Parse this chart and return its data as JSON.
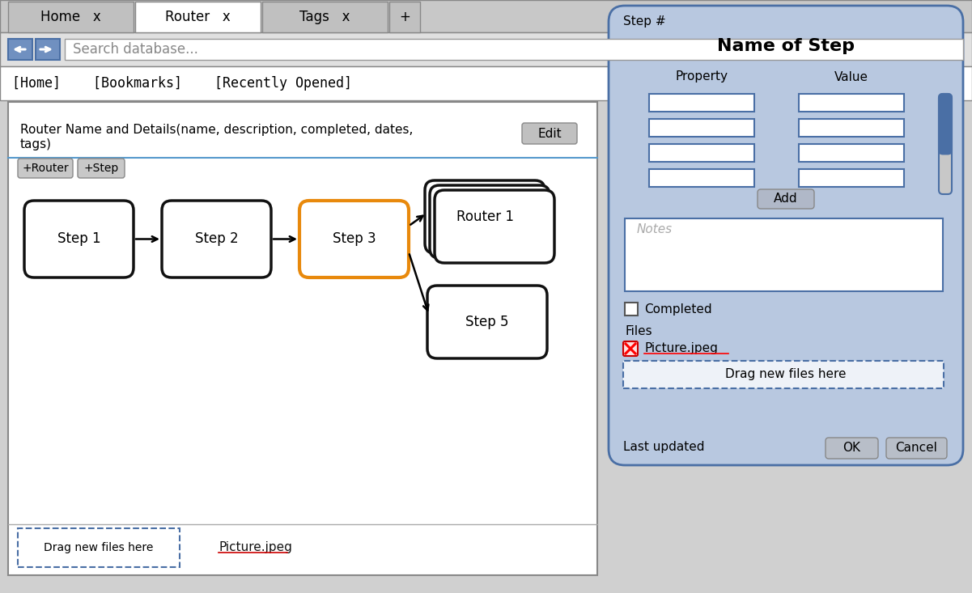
{
  "bg_color": "#d0d0d0",
  "tab_bar_color": "#c8c8c8",
  "tab_active_color": "#ffffff",
  "tab_inactive_color": "#c0c0c0",
  "active_tab": 1,
  "search_text": "Search database...",
  "nav_links": "[Home]    [Bookmarks]    [Recently Opened]",
  "main_panel_bg": "#ffffff",
  "main_panel_border": "#888888",
  "edit_btn_text": "Edit",
  "plus_router_text": "+Router",
  "plus_step_text": "+Step",
  "step1_text": "Step 1",
  "step2_text": "Step 2",
  "step3_text": "Step 3",
  "router1_text": "Router 1",
  "step5_text": "Step 5",
  "step3_color": "#e8890c",
  "drag_files_text": "Drag new files here",
  "picture_text": "Picture.jpeg",
  "side_panel_bg": "#b8c8e0",
  "side_panel_border": "#4a6fa5",
  "step_hash_text": "Step #",
  "name_of_step_text": "Name of Step",
  "property_text": "Property",
  "value_text": "Value",
  "add_btn_text": "Add",
  "notes_text": "Notes",
  "completed_text": "Completed",
  "files_text": "Files",
  "picture_jpeg_text": "Picture.jpeg",
  "drag_new_files_text": "Drag new files here",
  "last_updated_text": "Last updated",
  "ok_btn_text": "OK",
  "cancel_btn_text": "Cancel",
  "input_field_bg": "#ffffff",
  "input_field_border": "#4a6fa5",
  "scrollbar_track": "#b0b8c8",
  "scrollbar_thumb": "#4a6fa5"
}
